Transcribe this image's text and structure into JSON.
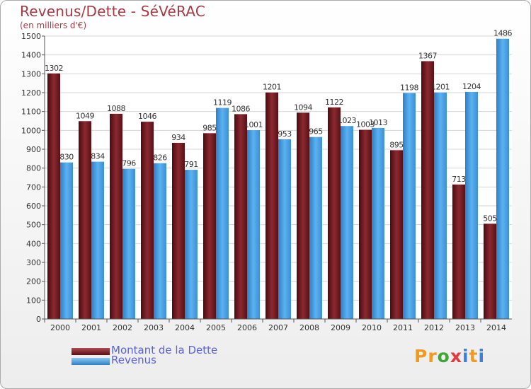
{
  "title": "Revenus/Dette - SéVéRAC",
  "subtitle": "(en milliers d'€)",
  "logo_letters": [
    "P",
    "r",
    "o",
    "x",
    "i",
    "t",
    "i"
  ],
  "logo_colors": [
    "#f29a1e",
    "#f29a1e",
    "#3fa535",
    "#e23a3a",
    "#3b82d6",
    "#f29a1e",
    "#3b82d6"
  ],
  "chart_data": {
    "type": "bar",
    "categories": [
      "2000",
      "2001",
      "2002",
      "2003",
      "2004",
      "2005",
      "2006",
      "2007",
      "2008",
      "2009",
      "2010",
      "2011",
      "2012",
      "2013",
      "2014"
    ],
    "series": [
      {
        "name": "Montant de la Dette",
        "color": "#7a1c22",
        "values": [
          1302,
          1049,
          1088,
          1046,
          934,
          985,
          1086,
          1201,
          1094,
          1122,
          1003,
          895,
          1367,
          713,
          505
        ]
      },
      {
        "name": "Revenus",
        "color": "#3d9be0",
        "values": [
          830,
          834,
          796,
          826,
          791,
          1119,
          1001,
          953,
          965,
          1023,
          1013,
          1198,
          1201,
          1204,
          1486
        ]
      }
    ],
    "ylim": [
      0,
      1500
    ],
    "yticks": [
      0,
      100,
      200,
      300,
      400,
      500,
      600,
      700,
      800,
      900,
      1000,
      1100,
      1200,
      1300,
      1400,
      1500
    ],
    "grid": true,
    "legend_position": "bottom-left"
  }
}
